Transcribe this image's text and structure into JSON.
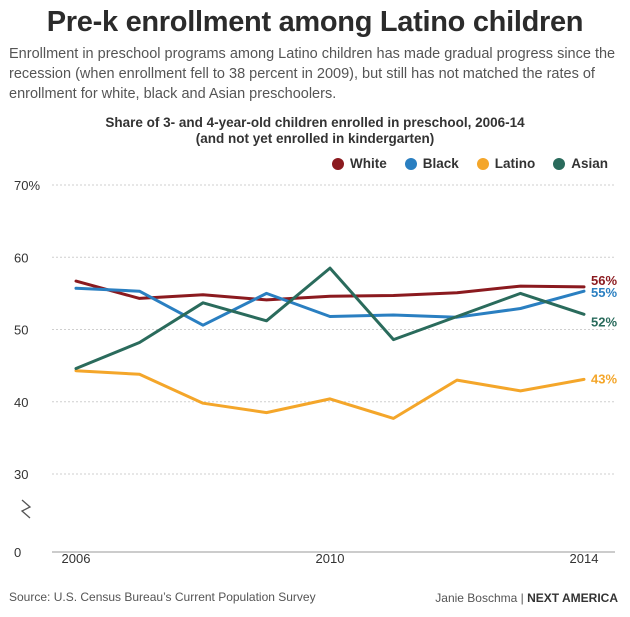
{
  "title": "Pre-k enrollment among Latino children",
  "subtitle": "Enrollment in preschool programs among Latino children has made gradual progress since the recession (when enrollment fell to 38 percent in 2009), but still has not matched the rates of enrollment for white, black and Asian preschoolers.",
  "chart_data": {
    "type": "line",
    "title": "Share of 3- and 4-year-old children enrolled in preschool, 2006-14",
    "title_line2": "(and not yet enrolled in kindergarten)",
    "xlabel": "",
    "ylabel": "",
    "x": [
      2006,
      2007,
      2008,
      2009,
      2010,
      2011,
      2012,
      2013,
      2014
    ],
    "x_ticks": [
      {
        "value": 2006,
        "label": "2006"
      },
      {
        "value": 2010,
        "label": "2010"
      },
      {
        "value": 2014,
        "label": "2014"
      }
    ],
    "y_ticks": [
      {
        "value": 70,
        "label": "70%"
      },
      {
        "value": 60,
        "label": "60"
      },
      {
        "value": 50,
        "label": "50"
      },
      {
        "value": 40,
        "label": "40"
      },
      {
        "value": 30,
        "label": "30"
      },
      {
        "value": 0,
        "label": "0"
      }
    ],
    "ylim": [
      0,
      70
    ],
    "axis_break": "between 0 and 30",
    "grid": true,
    "legend_position": "top-right",
    "series": [
      {
        "name": "White",
        "color": "#8b1a1f",
        "values": [
          56.7,
          54.3,
          54.8,
          54.1,
          54.6,
          54.7,
          55.1,
          56.0,
          55.9
        ],
        "end_label": "56%"
      },
      {
        "name": "Black",
        "color": "#2a7fc1",
        "values": [
          55.7,
          55.3,
          50.6,
          55.0,
          51.8,
          52.0,
          51.7,
          52.9,
          55.3
        ],
        "end_label": "55%"
      },
      {
        "name": "Latino",
        "color": "#f4a62a",
        "values": [
          44.3,
          43.8,
          39.8,
          38.5,
          40.4,
          37.7,
          43.0,
          41.5,
          43.1
        ],
        "end_label": "43%"
      },
      {
        "name": "Asian",
        "color": "#2a6b5c",
        "values": [
          44.6,
          48.2,
          53.7,
          51.2,
          58.5,
          48.6,
          51.8,
          55.0,
          52.1
        ],
        "end_label": "52%"
      }
    ]
  },
  "footer": {
    "source": "Source: U.S. Census Bureau’s Current Population Survey",
    "credit": "Janie Boschma | ",
    "brand": "NEXT AMERICA"
  }
}
